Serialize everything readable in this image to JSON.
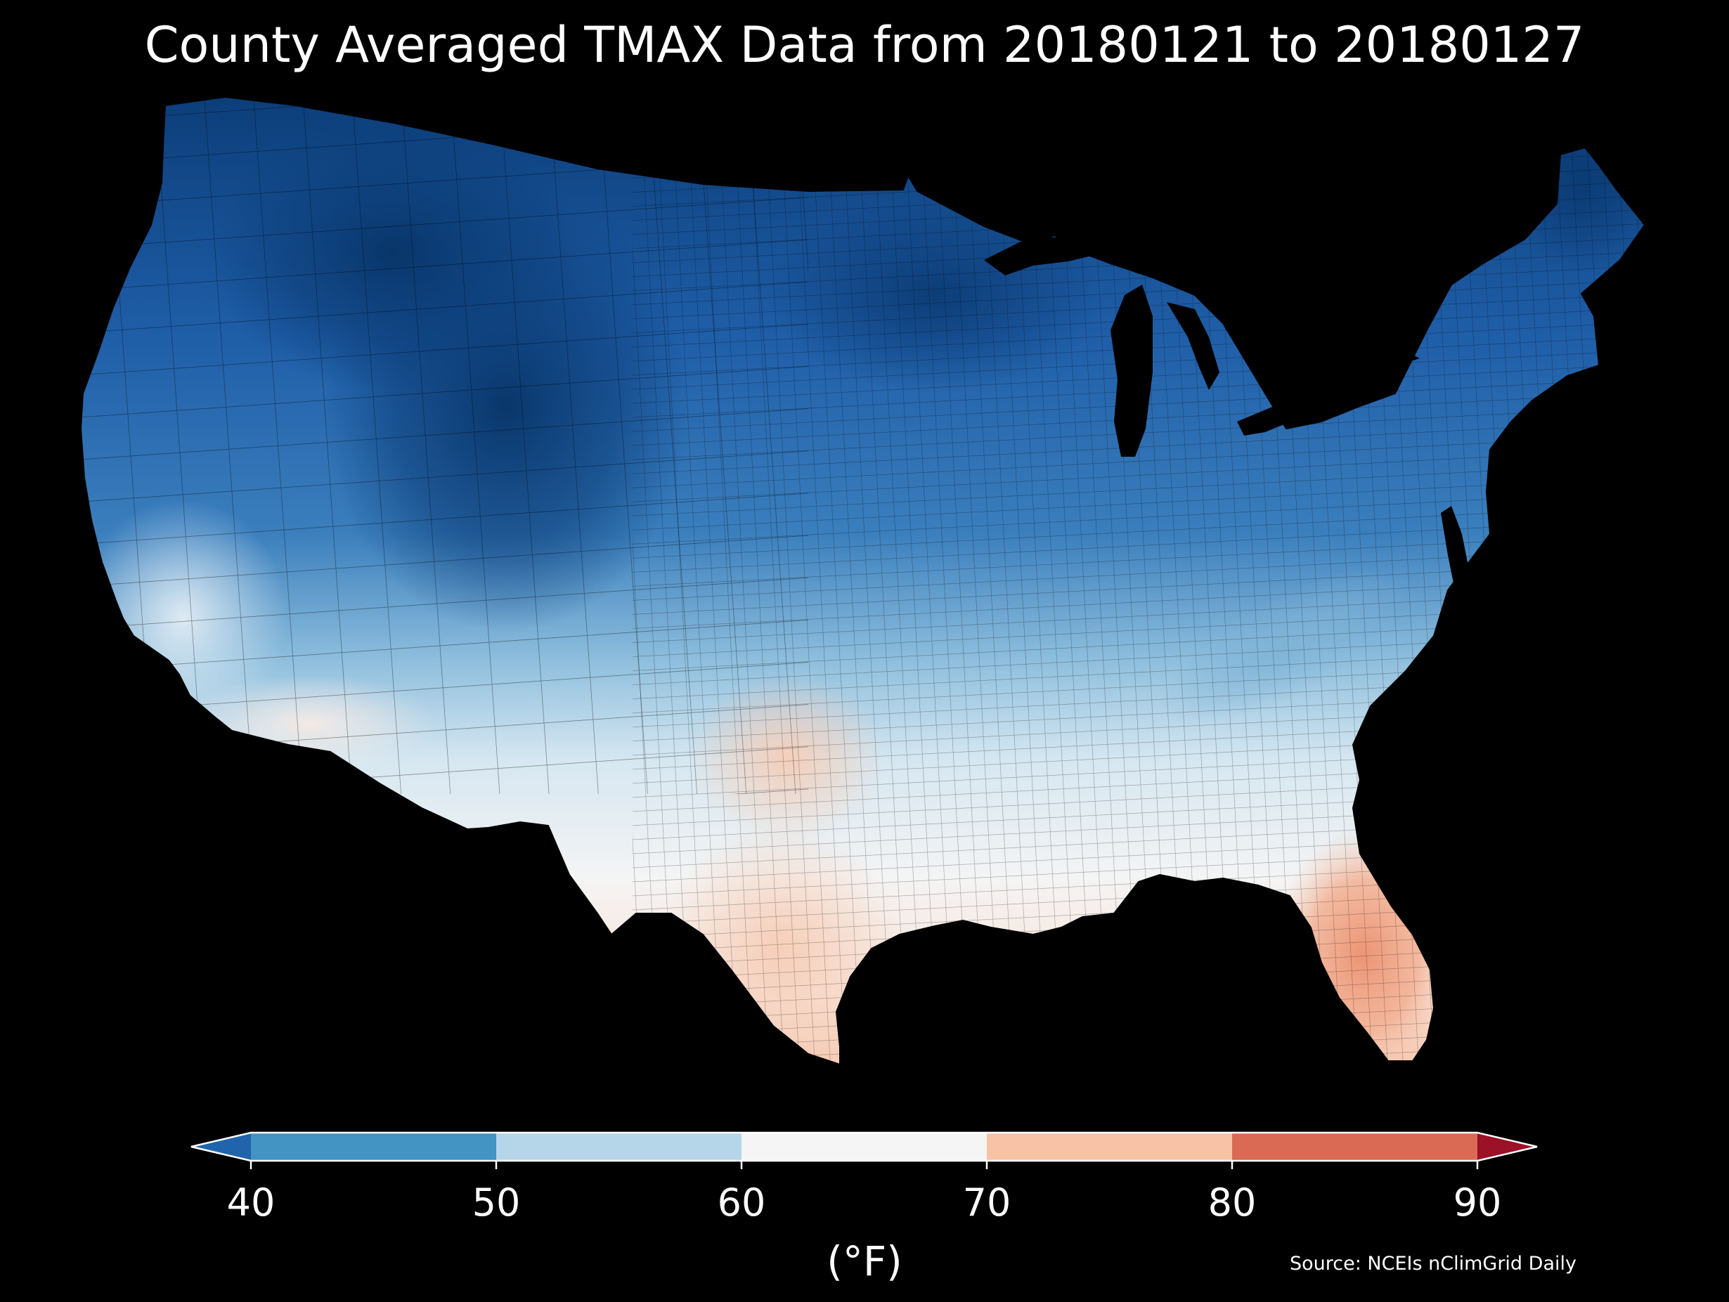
{
  "title": "County Averaged TMAX Data from 20180121 to 20180127",
  "source": "Source: NCEIs nClimGrid Daily",
  "colorbar": {
    "unit_label": "(°F)",
    "ticks": [
      "40",
      "50",
      "60",
      "70",
      "80",
      "90"
    ],
    "segments": [
      {
        "range": [
          40,
          50
        ],
        "color": "#4393c3"
      },
      {
        "range": [
          50,
          60
        ],
        "color": "#b4d6e8"
      },
      {
        "range": [
          60,
          70
        ],
        "color": "#f5f5f5"
      },
      {
        "range": [
          70,
          80
        ],
        "color": "#f7c2a6"
      },
      {
        "range": [
          80,
          90
        ],
        "color": "#db6a55"
      }
    ],
    "extend_low_color": "#2065ab",
    "extend_high_color": "#9b1127"
  },
  "map": {
    "region": "Contiguous United States, county level",
    "variable": "TMAX",
    "colormap": "RdBu_r",
    "range_f": [
      40,
      90
    ],
    "background": "#000000",
    "patterns": {
      "coldest": "Northern Rockies / Montana, Wyoming and western Dakotas, northern Minnesota, northern Maine",
      "cool": "Pacific Northwest, Great Basin, Great Lakes, Northeast",
      "near_60_70": "Southern plains, lower Mississippi valley, Southeast",
      "warmest": "South Florida and south Texas (70-80)"
    }
  }
}
